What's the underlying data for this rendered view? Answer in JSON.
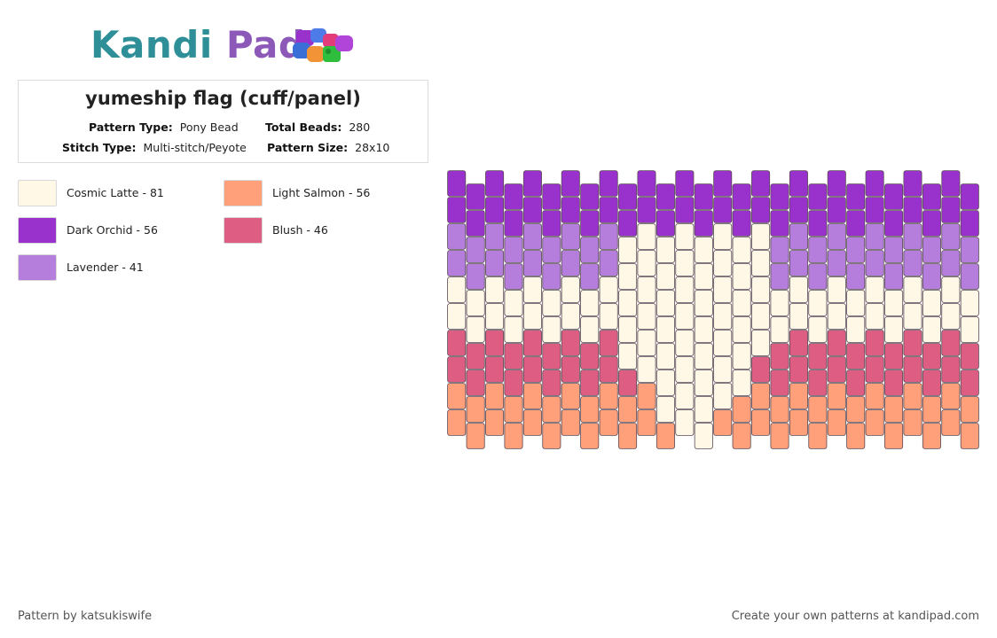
{
  "brand": {
    "name_part1": "Kandi",
    "name_part2": "Pad"
  },
  "pattern": {
    "title": "yumeship flag (cuff/panel)",
    "labels": {
      "pattern_type": "Pattern Type:",
      "total_beads": "Total Beads:",
      "stitch_type": "Stitch Type:",
      "pattern_size": "Pattern Size:"
    },
    "pattern_type": "Pony Bead",
    "total_beads": "280",
    "stitch_type": "Multi-stitch/Peyote",
    "pattern_size": "28x10"
  },
  "legend": [
    {
      "label": "Cosmic Latte - 81",
      "color": "#FFF8E7"
    },
    {
      "label": "Light Salmon - 56",
      "color": "#FFA07A"
    },
    {
      "label": "Dark Orchid - 56",
      "color": "#9932CC"
    },
    {
      "label": "Blush - 46",
      "color": "#DE5D83"
    },
    {
      "label": "Lavender - 41",
      "color": "#B57EDC"
    }
  ],
  "bead_grid": {
    "columns": 28,
    "rows": 10,
    "palette": {
      "C": "#FFF8E7",
      "S": "#FFA07A",
      "O": "#9932CC",
      "B": "#DE5D83",
      "L": "#B57EDC"
    },
    "columns_data": [
      "OOLLCCBBSS",
      "OOLLCCBBSS",
      "OOLLCCBBSS",
      "OOLLCCBBSS",
      "OOLLCCBBSS",
      "OOLLCCBBSS",
      "OOLLCCBBSS",
      "OOLLCCBBSS",
      "OOLLCCBBSS",
      "OOLLCCBBSS",
      "OOLLCCBBSS",
      "OOLLCCBBSS",
      "OOLLCCBBSS",
      "OOLLCCBBSS",
      "OOLLCCBBSS",
      "OOLLCCBBSS",
      "OOLLCCBBSS",
      "OOLLCCBBSS",
      "OOLLCCBBSS",
      "OOLLCCBBSS",
      "OOLLCCBBSS",
      "OOLLCCBBSS",
      "OOLLCCBBSS",
      "OOLLCCBBSS",
      "OOLLCCBBSS",
      "OOLLCCBBSS",
      "OOLLCCBBSS",
      "OOLLCCBBSS"
    ],
    "heart_overrides": [
      {
        "col": 9,
        "rows": "CCCCC"
      },
      {
        "col": 10,
        "rows": "CCCCCC"
      },
      {
        "col": 11,
        "rows": "CCCCCCC"
      },
      {
        "col": 12,
        "rows": "CCCCCCCC"
      },
      {
        "col": 13,
        "rows": "CCCCCCCC"
      },
      {
        "col": 14,
        "rows": "CCCCCCC"
      },
      {
        "col": 15,
        "rows": "CCCCCC"
      },
      {
        "col": 16,
        "rows": "CCCCC"
      }
    ]
  },
  "footer": {
    "credit": "Pattern by katsukiswife",
    "cta": "Create your own patterns at kandipad.com"
  }
}
